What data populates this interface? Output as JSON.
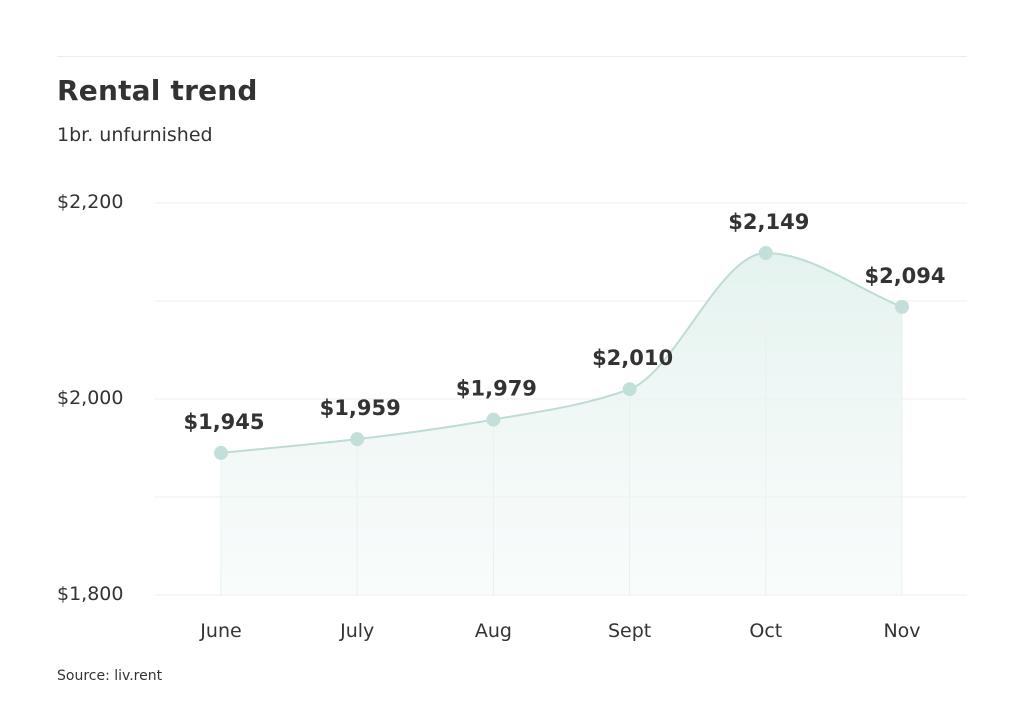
{
  "header": {
    "title": "Rental trend",
    "subtitle": "1br. unfurnished"
  },
  "footer": {
    "source": "Source: liv.rent"
  },
  "colors": {
    "line": "#bcdcd5",
    "marker": "#c2e0d9",
    "fill": "#e6f4f1",
    "grid": "#ececec",
    "text": "#333333"
  },
  "chart_data": {
    "type": "area",
    "title": "Rental trend",
    "subtitle": "1br. unfurnished",
    "xlabel": "",
    "ylabel": "",
    "categories": [
      "June",
      "July",
      "Aug",
      "Sept",
      "Oct",
      "Nov"
    ],
    "values": [
      1945,
      1959,
      1979,
      2010,
      2149,
      2094
    ],
    "data_labels": [
      "$1,945",
      "$1,959",
      "$1,979",
      "$2,010",
      "$2,149",
      "$2,094"
    ],
    "ylim": [
      1800,
      2200
    ],
    "yticks": [
      1800,
      2000,
      2200
    ],
    "ytick_labels": [
      "$1,800",
      "$2,000",
      "$2,200"
    ],
    "grid": true,
    "legend": "none"
  }
}
